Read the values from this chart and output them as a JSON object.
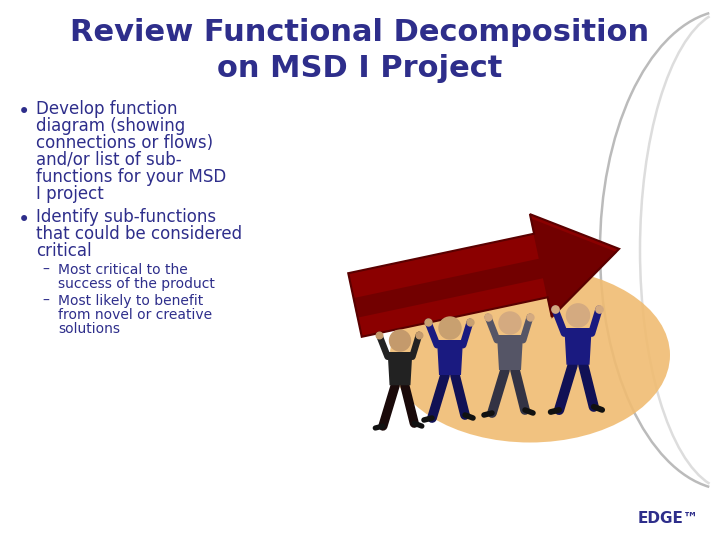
{
  "title_line1": "Review Functional Decomposition",
  "title_line2": "on MSD I Project",
  "title_color": "#2E2E8B",
  "title_fontsize": 22,
  "bg_color": "#FFFFFF",
  "bullet1_text": [
    "Develop function",
    "diagram (showing",
    "connections or flows)",
    "and/or list of sub-",
    "functions for your MSD",
    "I project"
  ],
  "bullet2_text": [
    "Identify sub-functions",
    "that could be considered",
    "critical"
  ],
  "sub1_text": [
    "Most critical to the",
    "success of the product"
  ],
  "sub2_text": [
    "Most likely to benefit",
    "from novel or creative",
    "solutions"
  ],
  "bullet_color": "#2E2E8B",
  "bullet_fontsize": 12,
  "sub_fontsize": 10,
  "edge_text": "EDGE™",
  "edge_color": "#2E2E8B",
  "edge_fontsize": 11,
  "ellipse_color": "#F0BC72",
  "arrow_color": "#8B0000",
  "arrow_dark": "#5a0000",
  "font_family": "Comic Sans MS",
  "arc1_color": "#BBBBBB",
  "arc2_color": "#DDDDDD",
  "fig_w": 7.2,
  "fig_h": 5.4,
  "dpi": 100
}
